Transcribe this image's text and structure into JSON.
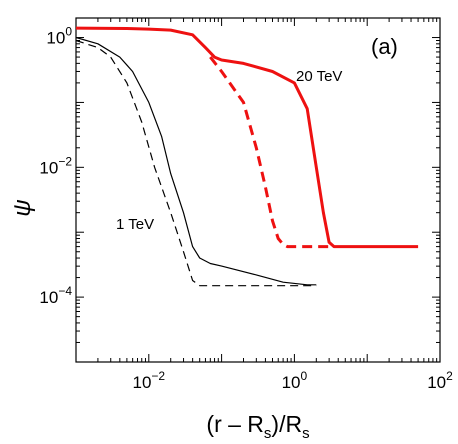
{
  "chart_data": {
    "type": "line",
    "panel_label": "(a)",
    "ylabel": "ψ",
    "xlabel": {
      "pre": "(r – R",
      "sub1": "s",
      "mid": ")/R",
      "sub2": "s"
    },
    "x_scale": "log",
    "y_scale": "log",
    "xlim": [
      0.001,
      100
    ],
    "ylim": [
      1e-05,
      2
    ],
    "x_ticks": [
      {
        "value": 0.01,
        "base": "10",
        "exp": "−2"
      },
      {
        "value": 1,
        "base": "10",
        "exp": "0"
      },
      {
        "value": 100,
        "base": "10",
        "exp": "2"
      }
    ],
    "y_ticks": [
      {
        "value": 1,
        "base": "10",
        "exp": "0"
      },
      {
        "value": 0.01,
        "base": "10",
        "exp": "−2"
      },
      {
        "value": 0.0001,
        "base": "10",
        "exp": "−4"
      }
    ],
    "series": [
      {
        "name": "20 TeV",
        "label": "20 TeV",
        "color": "#ee1111",
        "dash": "solid",
        "width": 3,
        "points": [
          [
            0.001,
            1.4
          ],
          [
            0.005,
            1.38
          ],
          [
            0.01,
            1.35
          ],
          [
            0.02,
            1.3
          ],
          [
            0.04,
            1.1
          ],
          [
            0.06,
            0.7
          ],
          [
            0.08,
            0.5
          ],
          [
            0.1,
            0.45
          ],
          [
            0.2,
            0.4
          ],
          [
            0.5,
            0.3
          ],
          [
            1.0,
            0.2
          ],
          [
            1.5,
            0.08
          ],
          [
            2.0,
            0.01
          ],
          [
            2.5,
            0.002
          ],
          [
            3.0,
            0.0007
          ],
          [
            3.5,
            0.0006
          ],
          [
            10,
            0.0006
          ],
          [
            50,
            0.0006
          ]
        ]
      },
      {
        "name": "20 TeV (dashed)",
        "color": "#ee1111",
        "dash": "dashed",
        "width": 3,
        "points": [
          [
            0.07,
            0.5
          ],
          [
            0.1,
            0.3
          ],
          [
            0.2,
            0.1
          ],
          [
            0.3,
            0.02
          ],
          [
            0.4,
            0.005
          ],
          [
            0.5,
            0.0015
          ],
          [
            0.6,
            0.0008
          ],
          [
            0.7,
            0.00065
          ],
          [
            0.8,
            0.0006
          ],
          [
            1,
            0.0006
          ],
          [
            3.5,
            0.0006
          ]
        ]
      },
      {
        "name": "1 TeV",
        "label": "1 TeV",
        "color": "#000000",
        "dash": "solid",
        "width": 1.2,
        "points": [
          [
            0.001,
            1.0
          ],
          [
            0.002,
            0.8
          ],
          [
            0.004,
            0.5
          ],
          [
            0.006,
            0.3
          ],
          [
            0.01,
            0.1
          ],
          [
            0.015,
            0.03
          ],
          [
            0.02,
            0.008
          ],
          [
            0.03,
            0.002
          ],
          [
            0.04,
            0.0006
          ],
          [
            0.05,
            0.0004
          ],
          [
            0.07,
            0.00033
          ],
          [
            0.1,
            0.0003
          ],
          [
            0.3,
            0.00022
          ],
          [
            0.7,
            0.00017
          ],
          [
            1.5,
            0.000155
          ],
          [
            2.0,
            0.000155
          ]
        ]
      },
      {
        "name": "1 TeV (dashed)",
        "color": "#000000",
        "dash": "dashed",
        "width": 1.2,
        "points": [
          [
            0.001,
            0.9
          ],
          [
            0.002,
            0.7
          ],
          [
            0.003,
            0.5
          ],
          [
            0.005,
            0.2
          ],
          [
            0.008,
            0.05
          ],
          [
            0.012,
            0.01
          ],
          [
            0.02,
            0.002
          ],
          [
            0.03,
            0.0005
          ],
          [
            0.04,
            0.00018
          ],
          [
            0.05,
            0.00015
          ],
          [
            0.1,
            0.00015
          ],
          [
            2.0,
            0.00015
          ]
        ]
      }
    ]
  }
}
